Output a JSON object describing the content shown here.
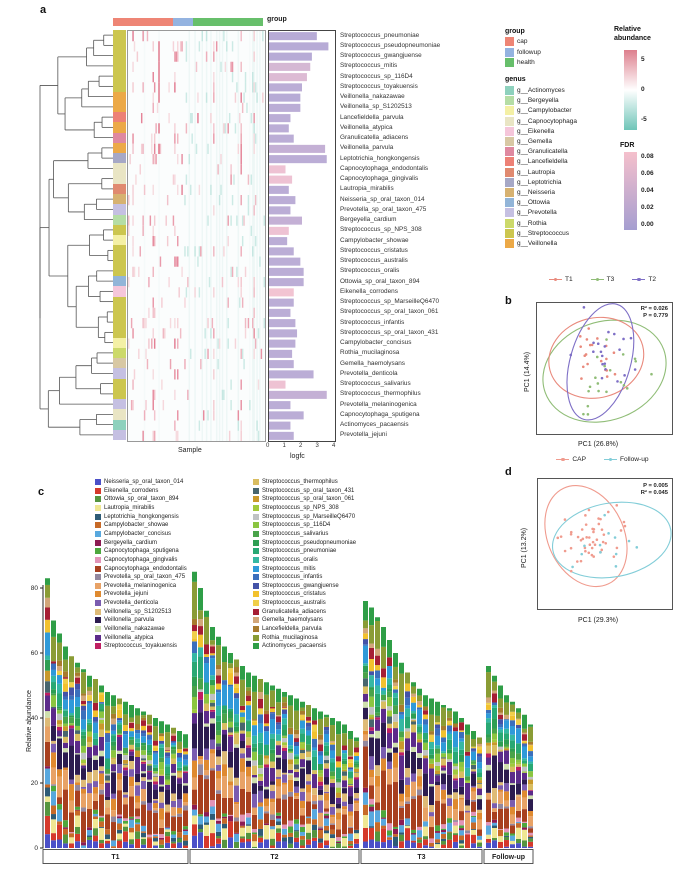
{
  "panels": {
    "a": {
      "label": "a",
      "group_bar_label": "group",
      "xlabel": "Sample",
      "logfc_label": "logfc",
      "legend_group": {
        "title": "group",
        "items": [
          {
            "label": "cap",
            "color": "#ee8575"
          },
          {
            "label": "followup",
            "color": "#94b3e0"
          },
          {
            "label": "health",
            "color": "#67bf6b"
          }
        ]
      },
      "legend_genus": {
        "title": "genus",
        "items": [
          {
            "label": "g__Actinomyces",
            "color": "#8ed1bd"
          },
          {
            "label": "g__Bergeyella",
            "color": "#b5dda5"
          },
          {
            "label": "g__Campylobacter",
            "color": "#f4f0a5"
          },
          {
            "label": "g__Capnocytophaga",
            "color": "#e9e5c4"
          },
          {
            "label": "g__Eikenella",
            "color": "#f5c6da"
          },
          {
            "label": "g__Gemella",
            "color": "#d8c8a4"
          },
          {
            "label": "g__Granulicatella",
            "color": "#df89a0"
          },
          {
            "label": "g__Lancefieldella",
            "color": "#ed8176"
          },
          {
            "label": "g__Lautropia",
            "color": "#e08a70"
          },
          {
            "label": "g__Leptotrichia",
            "color": "#a6a8c6"
          },
          {
            "label": "g__Neisseria",
            "color": "#d7b271"
          },
          {
            "label": "g__Ottowia",
            "color": "#92b5d8"
          },
          {
            "label": "g__Prevotella",
            "color": "#c5c0e2"
          },
          {
            "label": "g__Rothia",
            "color": "#ccd96a"
          },
          {
            "label": "g__Streptococcus",
            "color": "#ccc64f"
          },
          {
            "label": "g__Veillonella",
            "color": "#eca947"
          }
        ]
      },
      "legend_relabund": {
        "title1": "Relative",
        "title2": "abundance",
        "ticks": [
          "5",
          "0",
          "-5"
        ],
        "top": "#dd7f8d",
        "mid": "#ffffff",
        "bottom": "#6fc5b8"
      },
      "legend_fdr": {
        "title": "FDR",
        "ticks": [
          "0.08",
          "0.06",
          "0.04",
          "0.02",
          "0.00"
        ],
        "top": "#f5c0cc",
        "bottom": "#a59ed0"
      }
    },
    "b": {
      "label": "b",
      "legend": [
        {
          "label": "T1",
          "color": "#e98a7d"
        },
        {
          "label": "T3",
          "color": "#90bd77"
        },
        {
          "label": "T2",
          "color": "#7e6fc6"
        }
      ],
      "stats": "R² = 0.026\nP = 0.779",
      "xlabel": "PC1 (26.8%)",
      "ylabel": "PC1 (14.4%)"
    },
    "c": {
      "label": "c",
      "ylabel": "Relative abundance"
    },
    "d": {
      "label": "d",
      "legend": [
        {
          "label": "CAP",
          "color": "#f09b8e"
        },
        {
          "label": "Follow-up",
          "color": "#82cdd8"
        }
      ],
      "stats": "P = 0.005\nR² = 0.045",
      "xlabel": "PC1 (29.3%)",
      "ylabel": "PC1 (13.2%)"
    }
  },
  "chart_data": [
    {
      "id": "a",
      "type": "heatmap",
      "xlabel": "Sample",
      "n_sample_columns": 95,
      "col_group_fracs": [
        {
          "name": "cap",
          "frac": 0.4
        },
        {
          "name": "followup",
          "frac": 0.13
        },
        {
          "name": "health",
          "frac": 0.47
        }
      ],
      "relative_abundance_ticks": [
        5,
        0,
        -5
      ],
      "fdr_ticks": [
        0.08,
        0.06,
        0.04,
        0.02,
        0.0
      ],
      "logfc_axis": {
        "label": "logfc",
        "range": [
          0,
          4
        ],
        "ticks": [
          0,
          1,
          2,
          3,
          4
        ]
      },
      "genus_colors": {
        "Actinomyces": "#8ed1bd",
        "Bergeyella": "#b5dda5",
        "Campylobacter": "#f4f0a5",
        "Capnocytophaga": "#e9e5c4",
        "Eikenella": "#f5c6da",
        "Gemella": "#d8c8a4",
        "Granulicatella": "#df89a0",
        "Lancefieldella": "#ed8176",
        "Lautropia": "#e08a70",
        "Leptotrichia": "#a6a8c6",
        "Neisseria": "#d7b271",
        "Ottowia": "#92b5d8",
        "Prevotella": "#c5c0e2",
        "Rothia": "#ccd96a",
        "Streptococcus": "#ccc64f",
        "Veillonella": "#eca947"
      },
      "species": [
        {
          "name": "Streptococcus_pneumoniae",
          "genus": "Streptococcus",
          "logfc": 2.9,
          "fdr": 0.005
        },
        {
          "name": "Streptococcus_pseudopneumoniae",
          "genus": "Streptococcus",
          "logfc": 3.6,
          "fdr": 0.005
        },
        {
          "name": "Streptococcus_gwangjuense",
          "genus": "Streptococcus",
          "logfc": 2.6,
          "fdr": 0.005
        },
        {
          "name": "Streptococcus_mitis",
          "genus": "Streptococcus",
          "logfc": 2.5,
          "fdr": 0.04
        },
        {
          "name": "Streptococcus_sp_116D4",
          "genus": "Streptococcus",
          "logfc": 2.3,
          "fdr": 0.05
        },
        {
          "name": "Streptococcus_toyakuensis",
          "genus": "Streptococcus",
          "logfc": 2.0,
          "fdr": 0.01
        },
        {
          "name": "Veillonella_nakazawae",
          "genus": "Veillonella",
          "logfc": 1.9,
          "fdr": 0.005
        },
        {
          "name": "Veillonella_sp_S1202513",
          "genus": "Veillonella",
          "logfc": 1.9,
          "fdr": 0.01
        },
        {
          "name": "Lancefieldella_parvula",
          "genus": "Lancefieldella",
          "logfc": 1.3,
          "fdr": 0.01
        },
        {
          "name": "Veillonella_atypica",
          "genus": "Veillonella",
          "logfc": 1.2,
          "fdr": 0.01
        },
        {
          "name": "Granulicatella_adiacens",
          "genus": "Granulicatella",
          "logfc": 1.5,
          "fdr": 0.01
        },
        {
          "name": "Veillonella_parvula",
          "genus": "Veillonella",
          "logfc": 3.4,
          "fdr": 0.02
        },
        {
          "name": "Leptotrichia_hongkongensis",
          "genus": "Leptotrichia",
          "logfc": 3.5,
          "fdr": 0.01
        },
        {
          "name": "Capnocytophaga_endodontalis",
          "genus": "Capnocytophaga",
          "logfc": 1.0,
          "fdr": 0.07
        },
        {
          "name": "Capnocytophaga_gingivalis",
          "genus": "Capnocytophaga",
          "logfc": 1.4,
          "fdr": 0.07
        },
        {
          "name": "Lautropia_mirabilis",
          "genus": "Lautropia",
          "logfc": 1.2,
          "fdr": 0.01
        },
        {
          "name": "Neisseria_sp_oral_taxon_014",
          "genus": "Neisseria",
          "logfc": 1.6,
          "fdr": 0.01
        },
        {
          "name": "Prevotella_sp_oral_taxon_475",
          "genus": "Prevotella",
          "logfc": 1.3,
          "fdr": 0.01
        },
        {
          "name": "Bergeyella_cardium",
          "genus": "Bergeyella",
          "logfc": 2.0,
          "fdr": 0.02
        },
        {
          "name": "Streptococcus_sp_NPS_308",
          "genus": "Streptococcus",
          "logfc": 1.2,
          "fdr": 0.07
        },
        {
          "name": "Campylobacter_showae",
          "genus": "Campylobacter",
          "logfc": 1.1,
          "fdr": 0.01
        },
        {
          "name": "Streptococcus_cristatus",
          "genus": "Streptococcus",
          "logfc": 1.5,
          "fdr": 0.01
        },
        {
          "name": "Streptococcus_australis",
          "genus": "Streptococcus",
          "logfc": 1.9,
          "fdr": 0.01
        },
        {
          "name": "Streptococcus_oralis",
          "genus": "Streptococcus",
          "logfc": 2.1,
          "fdr": 0.01
        },
        {
          "name": "Ottowia_sp_oral_taxon_894",
          "genus": "Ottowia",
          "logfc": 2.1,
          "fdr": 0.01
        },
        {
          "name": "Eikenella_corrodens",
          "genus": "Eikenella",
          "logfc": 1.5,
          "fdr": 0.075
        },
        {
          "name": "Streptococcus_sp_MarseilleQ6470",
          "genus": "Streptococcus",
          "logfc": 1.5,
          "fdr": 0.01
        },
        {
          "name": "Streptococcus_sp_oral_taxon_061",
          "genus": "Streptococcus",
          "logfc": 1.3,
          "fdr": 0.01
        },
        {
          "name": "Streptococcus_infantis",
          "genus": "Streptococcus",
          "logfc": 1.6,
          "fdr": 0.01
        },
        {
          "name": "Streptococcus_sp_oral_taxon_431",
          "genus": "Streptococcus",
          "logfc": 1.7,
          "fdr": 0.01
        },
        {
          "name": "Campylobacter_concisus",
          "genus": "Campylobacter",
          "logfc": 1.6,
          "fdr": 0.01
        },
        {
          "name": "Rothia_mucilaginosa",
          "genus": "Rothia",
          "logfc": 1.4,
          "fdr": 0.01
        },
        {
          "name": "Gemella_haemolysans",
          "genus": "Gemella",
          "logfc": 1.5,
          "fdr": 0.01
        },
        {
          "name": "Prevotella_denticola",
          "genus": "Prevotella",
          "logfc": 2.7,
          "fdr": 0.01
        },
        {
          "name": "Streptococcus_salivarius",
          "genus": "Streptococcus",
          "logfc": 1.0,
          "fdr": 0.07
        },
        {
          "name": "Streptococcus_thermophilus",
          "genus": "Streptococcus",
          "logfc": 3.5,
          "fdr": 0.02
        },
        {
          "name": "Prevotella_melaninogenica",
          "genus": "Prevotella",
          "logfc": 1.3,
          "fdr": 0.01
        },
        {
          "name": "Capnocytophaga_sputigena",
          "genus": "Capnocytophaga",
          "logfc": 2.1,
          "fdr": 0.01
        },
        {
          "name": "Actinomyces_pacaensis",
          "genus": "Actinomyces",
          "logfc": 1.3,
          "fdr": 0.01
        },
        {
          "name": "Prevotella_jejuni",
          "genus": "Prevotella",
          "logfc": 1.5,
          "fdr": 0.01
        }
      ]
    },
    {
      "id": "b",
      "type": "scatter",
      "xlabel": "PC1 (26.8%)",
      "ylabel": "PC1 (14.4%)",
      "annotations": [
        "R² = 0.026",
        "P = 0.779"
      ],
      "series": [
        {
          "name": "T1",
          "color": "#e98a7d",
          "n": 20,
          "cx": 0.44,
          "cy": 0.42,
          "sx": 0.1,
          "sy": 0.1
        },
        {
          "name": "T3",
          "color": "#90bd77",
          "n": 20,
          "cx": 0.56,
          "cy": 0.55,
          "sx": 0.14,
          "sy": 0.13
        },
        {
          "name": "T2",
          "color": "#7e6fc6",
          "n": 20,
          "cx": 0.49,
          "cy": 0.4,
          "sx": 0.1,
          "sy": 0.13
        }
      ],
      "ellipses": [
        {
          "name": "T3",
          "color": "#90bd77",
          "cx": 0.5,
          "cy": 0.52,
          "rx": 0.46,
          "ry": 0.37,
          "rot": -20
        },
        {
          "name": "T1",
          "color": "#e98a7d",
          "cx": 0.44,
          "cy": 0.42,
          "rx": 0.35,
          "ry": 0.3,
          "rot": -15
        },
        {
          "name": "T2",
          "color": "#7e6fc6",
          "cx": 0.47,
          "cy": 0.45,
          "rx": 0.22,
          "ry": 0.45,
          "rot": 16
        }
      ]
    },
    {
      "id": "c",
      "type": "stacked_bar",
      "ylabel": "Relative abundance",
      "ylim": [
        0,
        85
      ],
      "yticks": [
        0,
        20,
        40,
        60,
        80
      ],
      "groups": [
        {
          "label": "T1",
          "bar_totals": [
            83,
            70,
            66,
            62,
            59,
            57,
            55,
            53,
            52,
            50,
            48,
            47,
            46,
            45,
            44,
            43,
            42,
            41,
            40,
            39,
            38,
            37,
            36,
            35
          ]
        },
        {
          "label": "T2",
          "bar_totals": [
            85,
            80,
            73,
            68,
            65,
            62,
            60,
            58,
            56,
            54,
            53,
            52,
            51,
            50,
            49,
            48,
            47,
            46,
            45,
            44,
            43,
            42,
            41,
            40,
            39,
            38,
            36,
            34
          ]
        },
        {
          "label": "T3",
          "bar_totals": [
            76,
            74,
            71,
            68,
            64,
            60,
            57,
            54,
            51,
            49,
            47,
            46,
            45,
            44,
            43,
            42,
            40,
            38,
            36,
            34
          ]
        },
        {
          "label": "Follow-up",
          "bar_totals": [
            56,
            53,
            50,
            47,
            45,
            43,
            41,
            38
          ]
        }
      ],
      "species": [
        {
          "label": "Neisseria_sp_oral_taxon_014",
          "color": "#4b50c8",
          "w": 2
        },
        {
          "label": "Eikenella_corrodens",
          "color": "#d5392b",
          "w": 3
        },
        {
          "label": "Ottowia_sp_oral_taxon_894",
          "color": "#55953f",
          "w": 2
        },
        {
          "label": "Lautropia_mirabilis",
          "color": "#efe793",
          "w": 3
        },
        {
          "label": "Leptotrichia_hongkongensis",
          "color": "#2e5b76",
          "w": 1.5
        },
        {
          "label": "Campylobacter_showae",
          "color": "#c76a28",
          "w": 2
        },
        {
          "label": "Campylobacter_concisus",
          "color": "#58a8de",
          "w": 2.5
        },
        {
          "label": "Bergeyella_cardium",
          "color": "#8c1c53",
          "w": 1
        },
        {
          "label": "Capnocytophaga_sputigena",
          "color": "#4da83e",
          "w": 1.5
        },
        {
          "label": "Capnocytophaga_gingivalis",
          "color": "#e294b8",
          "w": 1.5
        },
        {
          "label": "Capnocytophaga_endodontalis",
          "color": "#a8401f",
          "w": 8
        },
        {
          "label": "Prevotella_sp_oral_taxon_475",
          "color": "#93889f",
          "w": 1.5
        },
        {
          "label": "Prevotella_melaninogenica",
          "color": "#e8a266",
          "w": 4
        },
        {
          "label": "Prevotella_jejuni",
          "color": "#df8a30",
          "w": 3
        },
        {
          "label": "Prevotella_denticola",
          "color": "#7a5cb0",
          "w": 3
        },
        {
          "label": "Veillonella_sp_S1202513",
          "color": "#debb77",
          "w": 3
        },
        {
          "label": "Veillonella_parvula",
          "color": "#2c1c4f",
          "w": 6
        },
        {
          "label": "Veillonella_nakazawae",
          "color": "#cfe0ad",
          "w": 1.5
        },
        {
          "label": "Veillonella_atypica",
          "color": "#5c2b8a",
          "w": 4
        },
        {
          "label": "Streptococcus_toyakuensis",
          "color": "#c01f62",
          "w": 1
        },
        {
          "label": "Streptococcus_thermophilus",
          "color": "#d9bd61",
          "w": 2
        },
        {
          "label": "Streptococcus_sp_oral_taxon_431",
          "color": "#47656e",
          "w": 1.5
        },
        {
          "label": "Streptococcus_sp_oral_taxon_061",
          "color": "#c9992b",
          "w": 1.5
        },
        {
          "label": "Streptococcus_sp_NPS_308",
          "color": "#a2c93c",
          "w": 1.5
        },
        {
          "label": "Streptococcus_sp_MarseilleQ6470",
          "color": "#bfc2c3",
          "w": 1.5
        },
        {
          "label": "Streptococcus_sp_116D4",
          "color": "#8bc540",
          "w": 2
        },
        {
          "label": "Streptococcus_salivarius",
          "color": "#4aa34a",
          "w": 2
        },
        {
          "label": "Streptococcus_pseudopneumoniae",
          "color": "#2e9e53",
          "w": 2
        },
        {
          "label": "Streptococcus_pneumoniae",
          "color": "#29a874",
          "w": 3
        },
        {
          "label": "Streptococcus_oralis",
          "color": "#35b8a3",
          "w": 2
        },
        {
          "label": "Streptococcus_mitis",
          "color": "#2f9ad9",
          "w": 4
        },
        {
          "label": "Streptococcus_infantis",
          "color": "#3b6fbc",
          "w": 2
        },
        {
          "label": "Streptococcus_gwangjuense",
          "color": "#4453a8",
          "w": 1.5
        },
        {
          "label": "Streptococcus_cristatus",
          "color": "#f2c12e",
          "w": 2
        },
        {
          "label": "Streptococcus_australis",
          "color": "#f0cf4a",
          "w": 1.5
        },
        {
          "label": "Granulicatella_adiacens",
          "color": "#a61e34",
          "w": 2
        },
        {
          "label": "Gemella_haemolysans",
          "color": "#d2a679",
          "w": 1.5
        },
        {
          "label": "Lancefieldella_parvula",
          "color": "#a87b2e",
          "w": 1.5
        },
        {
          "label": "Rothia_mucilaginosa",
          "color": "#8a9c35",
          "w": 6
        },
        {
          "label": "Actinomyces_pacaensis",
          "color": "#2f9e47",
          "w": 4
        }
      ]
    },
    {
      "id": "d",
      "type": "scatter",
      "xlabel": "PC1 (29.3%)",
      "ylabel": "PC1 (13.2%)",
      "annotations": [
        "P = 0.005",
        "R² = 0.045"
      ],
      "series": [
        {
          "name": "CAP",
          "color": "#f09b8e",
          "n": 48,
          "cx": 0.36,
          "cy": 0.44,
          "sx": 0.13,
          "sy": 0.13
        },
        {
          "name": "Follow-up",
          "color": "#82cdd8",
          "n": 12,
          "cx": 0.56,
          "cy": 0.5,
          "sx": 0.16,
          "sy": 0.12
        }
      ],
      "ellipses": [
        {
          "name": "CAP",
          "color": "#f09b8e",
          "cx": 0.36,
          "cy": 0.44,
          "rx": 0.28,
          "ry": 0.4,
          "rot": -25
        },
        {
          "name": "Follow-up",
          "color": "#82cdd8",
          "cx": 0.55,
          "cy": 0.47,
          "rx": 0.44,
          "ry": 0.28,
          "rot": -10
        }
      ]
    }
  ]
}
